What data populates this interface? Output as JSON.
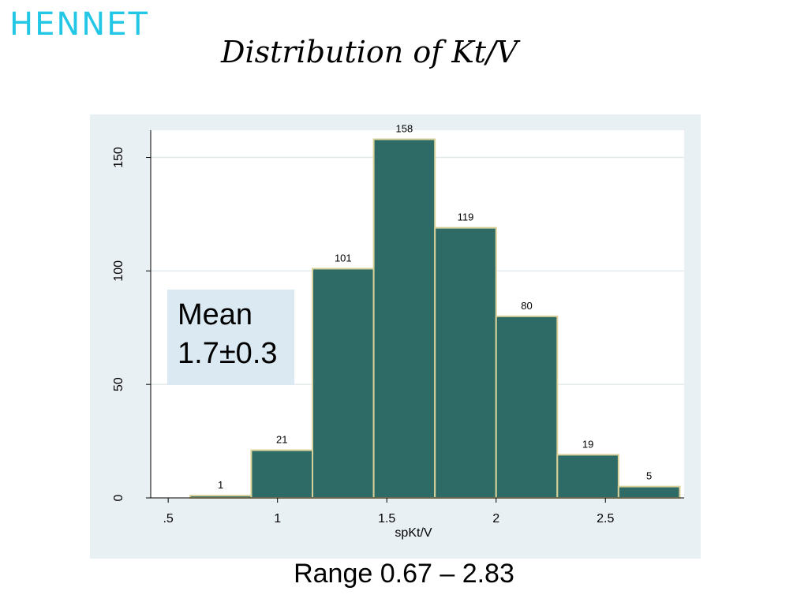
{
  "brand": "HENNET",
  "slide_title": "Distribution of Kt/V",
  "annotation": {
    "line1": "Mean",
    "line2": "1.7±0.3"
  },
  "footer": "Range 0.67 – 2.83",
  "colors": {
    "bar_fill": "#2e6b67",
    "bar_edge": "#d9d19a",
    "panel_bg": "#e9f0f4",
    "plot_bg": "#ffffff",
    "brand": "#22c7e6"
  },
  "chart_data": {
    "type": "bar",
    "title": "",
    "xlabel": "spKt/V",
    "ylabel": "",
    "x_ticks": [
      0.5,
      1,
      1.5,
      2,
      2.5
    ],
    "x_tick_labels": [
      ".5",
      "1",
      "1.5",
      "2",
      "2.5"
    ],
    "y_ticks": [
      0,
      50,
      100,
      150
    ],
    "y_tick_labels": [
      "0",
      "50",
      "100",
      "150"
    ],
    "xlim": [
      0.42,
      2.86
    ],
    "ylim": [
      0,
      162
    ],
    "grid": true,
    "bins": [
      {
        "start": 0.6,
        "end": 0.88,
        "count": 1,
        "label": "1"
      },
      {
        "start": 0.88,
        "end": 1.16,
        "count": 21,
        "label": "21"
      },
      {
        "start": 1.16,
        "end": 1.44,
        "count": 101,
        "label": "101"
      },
      {
        "start": 1.44,
        "end": 1.72,
        "count": 158,
        "label": "158"
      },
      {
        "start": 1.72,
        "end": 2.0,
        "count": 119,
        "label": "119"
      },
      {
        "start": 2.0,
        "end": 2.28,
        "count": 80,
        "label": "80"
      },
      {
        "start": 2.28,
        "end": 2.56,
        "count": 19,
        "label": "19"
      },
      {
        "start": 2.56,
        "end": 2.84,
        "count": 5,
        "label": "5"
      }
    ]
  }
}
